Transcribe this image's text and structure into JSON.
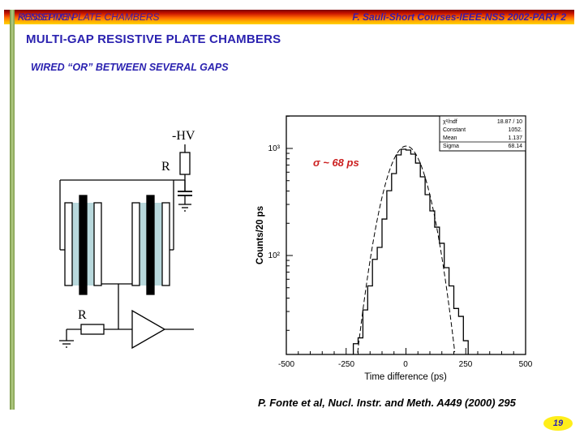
{
  "header": {
    "left_text_a": "RESISTIVE PLATE CHAMBERS",
    "left_text_b": "KONSEPTION",
    "right_text": "F. Sauli-Short Courses-IEEE-NSS 2002-PART 2"
  },
  "slide": {
    "title": "MULTI-GAP RESISTIVE PLATE CHAMBERS",
    "subtitle": "WIRED “OR” BETWEEN SEVERAL GAPS",
    "citation": "P. Fonte et al, Nucl. Instr. and Meth.  A449 (2000) 295",
    "page_number": "19"
  },
  "circuit": {
    "hv_label": "-HV",
    "resistor_top_label": "R",
    "resistor_bottom_label": "R",
    "colors": {
      "gap_fill": "#b8d8dc",
      "electrode": "#000000"
    }
  },
  "colors": {
    "title": "#2b22b0",
    "annotation": "#cc2020",
    "badge": "#ffee1a"
  },
  "chart_data": {
    "type": "bar",
    "title": "",
    "xlabel": "Time difference (ps)",
    "ylabel": "Counts/20 ps",
    "yscale": "log",
    "xlim": [
      -500,
      500
    ],
    "ylim": [
      12,
      2400
    ],
    "x_ticks": [
      "-500",
      "-250",
      "0",
      "250",
      "500"
    ],
    "y_ticks": [
      "10²",
      "10³"
    ],
    "annotation": "σ ~ 68 ps",
    "stats_box": [
      {
        "label": "χ²/ndf",
        "value": "18.87  /  10"
      },
      {
        "label": "Constant",
        "value": "1052."
      },
      {
        "label": "Mean",
        "value": "1.137"
      },
      {
        "label": "Sigma",
        "value": "68.14"
      }
    ],
    "bin_width": 20,
    "bin_edges_start": -220,
    "histogram_counts": [
      15,
      17,
      31,
      52,
      92,
      119,
      219,
      403,
      582,
      870,
      983,
      966,
      885,
      730,
      543,
      370,
      261,
      184,
      130,
      77,
      52,
      32,
      27,
      16
    ],
    "fit": {
      "function": "gaussian",
      "constant": 1052,
      "mean": 1.137,
      "sigma": 68.14,
      "style": "dashed"
    },
    "grid": false,
    "legend": "stats box, top-right"
  }
}
